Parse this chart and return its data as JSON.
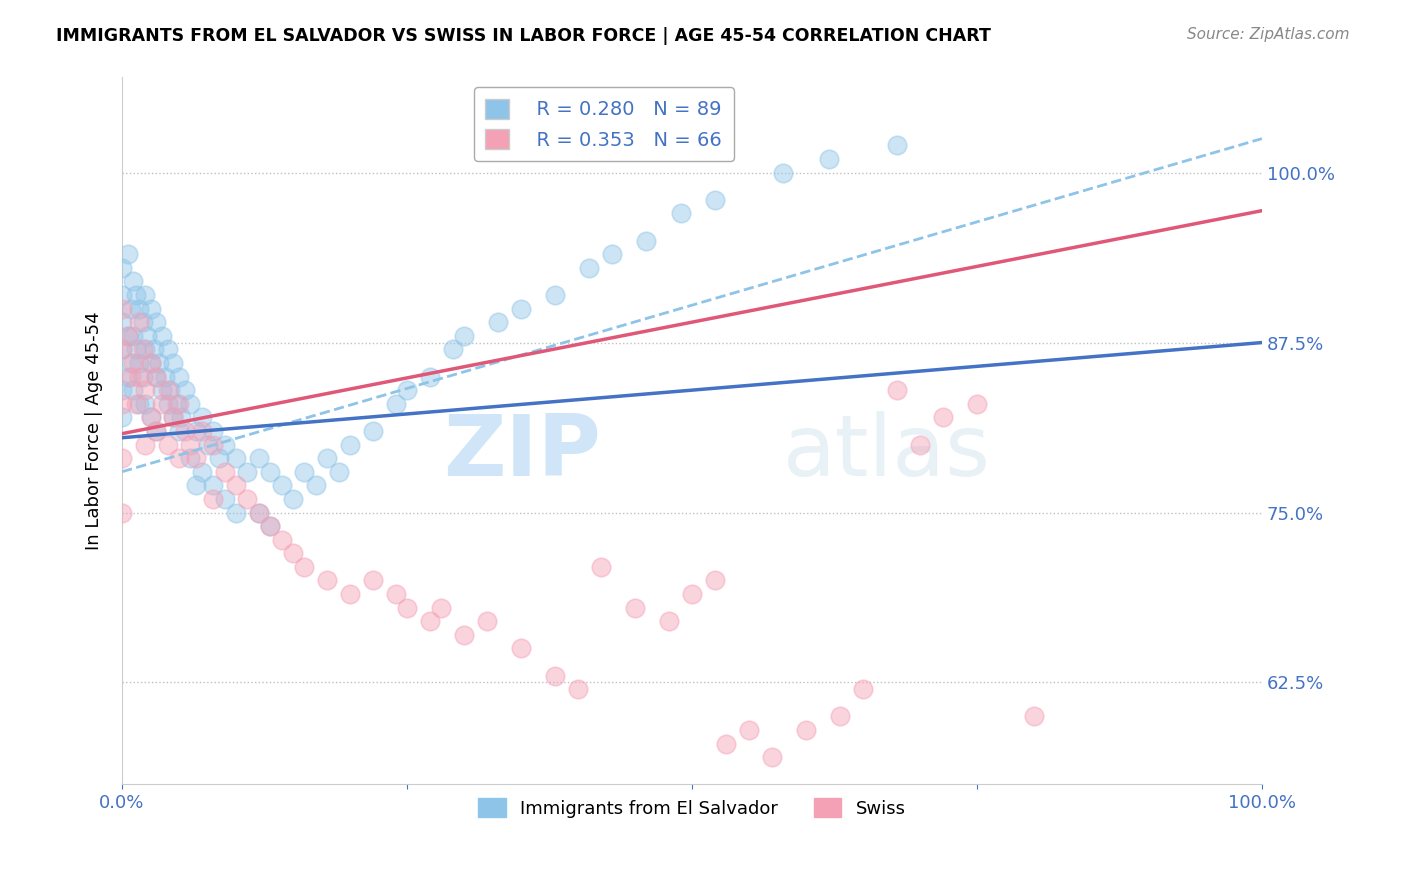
{
  "title": "IMMIGRANTS FROM EL SALVADOR VS SWISS IN LABOR FORCE | AGE 45-54 CORRELATION CHART",
  "source": "Source: ZipAtlas.com",
  "ylabel": "In Labor Force | Age 45-54",
  "xlim": [
    0,
    1.0
  ],
  "ylim": [
    0.55,
    1.07
  ],
  "ytick_positions": [
    0.625,
    0.75,
    0.875,
    1.0
  ],
  "yticklabels": [
    "62.5%",
    "75.0%",
    "87.5%",
    "100.0%"
  ],
  "blue_color": "#8ec4e8",
  "pink_color": "#f4a0b5",
  "trend_blue": "#4472c4",
  "trend_pink": "#e05878",
  "dashed_color": "#8ec4e8",
  "legend_r_blue": "0.280",
  "legend_n_blue": "89",
  "legend_r_pink": "0.353",
  "legend_n_pink": "66",
  "legend_label_blue": "Immigrants from El Salvador",
  "legend_label_pink": "Swiss",
  "watermark_zip": "ZIP",
  "watermark_atlas": "atlas",
  "blue_seed": 42,
  "pink_seed": 123,
  "blue_points_x": [
    0.0,
    0.0,
    0.0,
    0.0,
    0.0,
    0.0,
    0.005,
    0.005,
    0.005,
    0.008,
    0.008,
    0.01,
    0.01,
    0.01,
    0.012,
    0.012,
    0.015,
    0.015,
    0.015,
    0.018,
    0.018,
    0.02,
    0.02,
    0.02,
    0.022,
    0.025,
    0.025,
    0.025,
    0.028,
    0.03,
    0.03,
    0.03,
    0.032,
    0.035,
    0.035,
    0.038,
    0.04,
    0.04,
    0.042,
    0.045,
    0.045,
    0.048,
    0.05,
    0.05,
    0.052,
    0.055,
    0.06,
    0.06,
    0.065,
    0.065,
    0.07,
    0.07,
    0.075,
    0.08,
    0.08,
    0.085,
    0.09,
    0.09,
    0.1,
    0.1,
    0.11,
    0.12,
    0.12,
    0.13,
    0.13,
    0.14,
    0.15,
    0.16,
    0.17,
    0.18,
    0.19,
    0.2,
    0.22,
    0.24,
    0.25,
    0.27,
    0.29,
    0.3,
    0.33,
    0.35,
    0.38,
    0.41,
    0.43,
    0.46,
    0.49,
    0.52,
    0.58,
    0.62,
    0.68
  ],
  "blue_points_y": [
    0.93,
    0.91,
    0.89,
    0.87,
    0.84,
    0.82,
    0.94,
    0.88,
    0.85,
    0.9,
    0.86,
    0.92,
    0.88,
    0.84,
    0.91,
    0.87,
    0.9,
    0.86,
    0.83,
    0.89,
    0.85,
    0.91,
    0.87,
    0.83,
    0.88,
    0.9,
    0.86,
    0.82,
    0.87,
    0.89,
    0.85,
    0.81,
    0.86,
    0.88,
    0.84,
    0.85,
    0.87,
    0.83,
    0.84,
    0.86,
    0.82,
    0.83,
    0.85,
    0.81,
    0.82,
    0.84,
    0.83,
    0.79,
    0.81,
    0.77,
    0.82,
    0.78,
    0.8,
    0.81,
    0.77,
    0.79,
    0.8,
    0.76,
    0.79,
    0.75,
    0.78,
    0.79,
    0.75,
    0.78,
    0.74,
    0.77,
    0.76,
    0.78,
    0.77,
    0.79,
    0.78,
    0.8,
    0.81,
    0.83,
    0.84,
    0.85,
    0.87,
    0.88,
    0.89,
    0.9,
    0.91,
    0.93,
    0.94,
    0.95,
    0.97,
    0.98,
    1.0,
    1.01,
    1.02
  ],
  "pink_points_x": [
    0.0,
    0.0,
    0.0,
    0.0,
    0.0,
    0.005,
    0.008,
    0.01,
    0.012,
    0.015,
    0.015,
    0.018,
    0.02,
    0.02,
    0.025,
    0.025,
    0.03,
    0.03,
    0.035,
    0.04,
    0.04,
    0.045,
    0.05,
    0.05,
    0.055,
    0.06,
    0.065,
    0.07,
    0.08,
    0.08,
    0.09,
    0.1,
    0.11,
    0.12,
    0.13,
    0.14,
    0.15,
    0.16,
    0.18,
    0.2,
    0.22,
    0.24,
    0.25,
    0.27,
    0.28,
    0.3,
    0.32,
    0.35,
    0.38,
    0.4,
    0.42,
    0.45,
    0.48,
    0.5,
    0.52,
    0.53,
    0.55,
    0.57,
    0.6,
    0.63,
    0.65,
    0.68,
    0.7,
    0.72,
    0.75,
    0.8
  ],
  "pink_points_y": [
    0.9,
    0.87,
    0.83,
    0.79,
    0.75,
    0.88,
    0.85,
    0.86,
    0.83,
    0.89,
    0.85,
    0.87,
    0.84,
    0.8,
    0.86,
    0.82,
    0.85,
    0.81,
    0.83,
    0.84,
    0.8,
    0.82,
    0.83,
    0.79,
    0.81,
    0.8,
    0.79,
    0.81,
    0.8,
    0.76,
    0.78,
    0.77,
    0.76,
    0.75,
    0.74,
    0.73,
    0.72,
    0.71,
    0.7,
    0.69,
    0.7,
    0.69,
    0.68,
    0.67,
    0.68,
    0.66,
    0.67,
    0.65,
    0.63,
    0.62,
    0.71,
    0.68,
    0.67,
    0.69,
    0.7,
    0.58,
    0.59,
    0.57,
    0.59,
    0.6,
    0.62,
    0.84,
    0.8,
    0.82,
    0.83,
    0.6
  ]
}
